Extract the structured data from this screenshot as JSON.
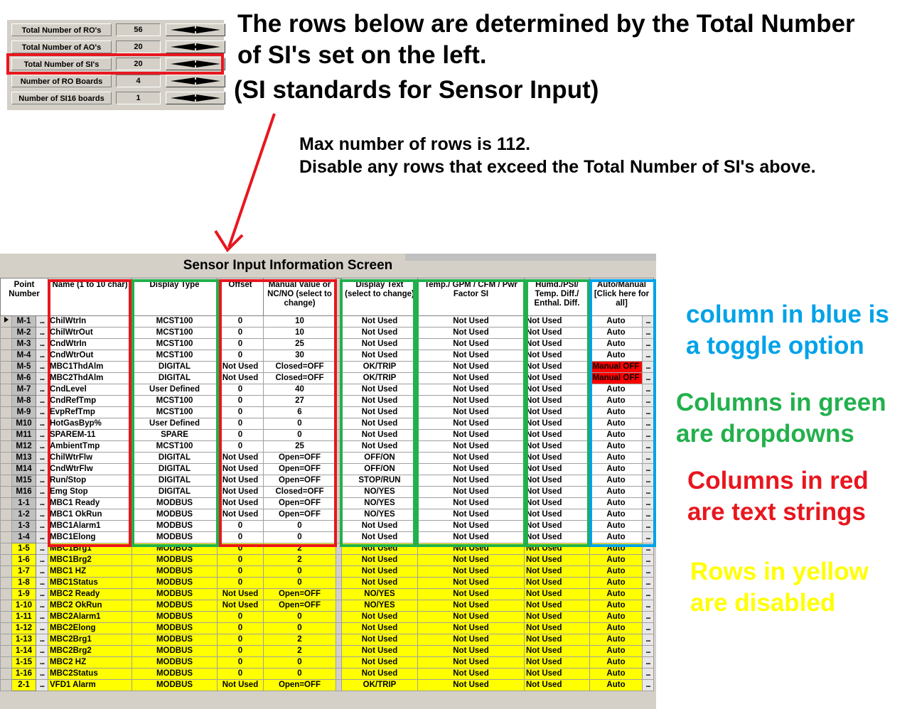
{
  "settings": [
    {
      "label": "Total Number of RO's",
      "value": "56"
    },
    {
      "label": "Total Number of AO's",
      "value": "20"
    },
    {
      "label": "Total Number of SI's",
      "value": "20"
    },
    {
      "label": "Number of RO Boards",
      "value": "4"
    },
    {
      "label": "Number of SI16 boards",
      "value": "1"
    }
  ],
  "annotations": {
    "title_line1": "The rows below are determined by the Total Number",
    "title_line2": "of SI's set on the left.",
    "si_meaning": "(SI standards for Sensor Input)",
    "max_rows": "Max number of rows is 112.",
    "disable_rows": "Disable any rows that exceed the Total Number of SI's above.",
    "blue_line1": "column in blue is",
    "blue_line2": "a toggle option",
    "green_line1": "Columns in green",
    "green_line2": "are dropdowns",
    "red_line1": "Columns in red",
    "red_line2": "are text strings",
    "yellow_line1": "Rows in yellow",
    "yellow_line2": "are disabled"
  },
  "colors": {
    "red": "#e8161e",
    "green": "#22b04c",
    "blue": "#00a2e8",
    "yellow": "#ffff00"
  },
  "screen": {
    "title": "Sensor Input Information Screen",
    "columns": [
      "Point Number",
      "Name  (1 to 10 char)",
      "Display Type",
      "Offset",
      "Manual Value or NC/NO (select to change)",
      "Display Text (select to change)",
      "Temp./ GPM / CFM / Pwr Factor SI",
      "Humd./PSI/ Temp. Diff./ Enthal. Diff.",
      "Auto/Manual [Click here for all]"
    ],
    "button_label": "...",
    "current_row_icon": "current-row-arrow-icon",
    "rows": [
      {
        "pt": "M-1",
        "name": "ChilWtrIn",
        "type": "MCST100",
        "offset": "0",
        "manual": "10",
        "text": "Not Used",
        "temp": "Not Used",
        "humd": "Not Used",
        "mode": "Auto",
        "disabled": false
      },
      {
        "pt": "M-2",
        "name": "ChilWtrOut",
        "type": "MCST100",
        "offset": "0",
        "manual": "10",
        "text": "Not Used",
        "temp": "Not Used",
        "humd": "Not Used",
        "mode": "Auto",
        "disabled": false
      },
      {
        "pt": "M-3",
        "name": "CndWtrIn",
        "type": "MCST100",
        "offset": "0",
        "manual": "25",
        "text": "Not Used",
        "temp": "Not Used",
        "humd": "Not Used",
        "mode": "Auto",
        "disabled": false
      },
      {
        "pt": "M-4",
        "name": "CndWtrOut",
        "type": "MCST100",
        "offset": "0",
        "manual": "30",
        "text": "Not Used",
        "temp": "Not Used",
        "humd": "Not Used",
        "mode": "Auto",
        "disabled": false
      },
      {
        "pt": "M-5",
        "name": "MBC1ThdAlm",
        "type": "DIGITAL",
        "offset": "Not Used",
        "manual": "Closed=OFF",
        "text": "OK/TRIP",
        "temp": "Not Used",
        "humd": "Not Used",
        "mode": "Manual OFF",
        "disabled": false
      },
      {
        "pt": "M-6",
        "name": "MBC2ThdAlm",
        "type": "DIGITAL",
        "offset": "Not Used",
        "manual": "Closed=OFF",
        "text": "OK/TRIP",
        "temp": "Not Used",
        "humd": "Not Used",
        "mode": "Manual OFF",
        "disabled": false
      },
      {
        "pt": "M-7",
        "name": "CndLevel",
        "type": "User Defined",
        "offset": "0",
        "manual": "40",
        "text": "Not Used",
        "temp": "Not Used",
        "humd": "Not Used",
        "mode": "Auto",
        "disabled": false
      },
      {
        "pt": "M-8",
        "name": "CndRefTmp",
        "type": "MCST100",
        "offset": "0",
        "manual": "27",
        "text": "Not Used",
        "temp": "Not Used",
        "humd": "Not Used",
        "mode": "Auto",
        "disabled": false
      },
      {
        "pt": "M-9",
        "name": "EvpRefTmp",
        "type": "MCST100",
        "offset": "0",
        "manual": "6",
        "text": "Not Used",
        "temp": "Not Used",
        "humd": "Not Used",
        "mode": "Auto",
        "disabled": false
      },
      {
        "pt": "M10",
        "name": "HotGasByp%",
        "type": "User Defined",
        "offset": "0",
        "manual": "0",
        "text": "Not Used",
        "temp": "Not Used",
        "humd": "Not Used",
        "mode": "Auto",
        "disabled": false
      },
      {
        "pt": "M11",
        "name": "SPAREM-11",
        "type": "SPARE",
        "offset": "0",
        "manual": "0",
        "text": "Not Used",
        "temp": "Not Used",
        "humd": "Not Used",
        "mode": "Auto",
        "disabled": false
      },
      {
        "pt": "M12",
        "name": "AmbientTmp",
        "type": "MCST100",
        "offset": "0",
        "manual": "25",
        "text": "Not Used",
        "temp": "Not Used",
        "humd": "Not Used",
        "mode": "Auto",
        "disabled": false
      },
      {
        "pt": "M13",
        "name": "ChilWtrFlw",
        "type": "DIGITAL",
        "offset": "Not Used",
        "manual": "Open=OFF",
        "text": "OFF/ON",
        "temp": "Not Used",
        "humd": "Not Used",
        "mode": "Auto",
        "disabled": false
      },
      {
        "pt": "M14",
        "name": "CndWtrFlw",
        "type": "DIGITAL",
        "offset": "Not Used",
        "manual": "Open=OFF",
        "text": "OFF/ON",
        "temp": "Not Used",
        "humd": "Not Used",
        "mode": "Auto",
        "disabled": false
      },
      {
        "pt": "M15",
        "name": "Run/Stop",
        "type": "DIGITAL",
        "offset": "Not Used",
        "manual": "Open=OFF",
        "text": "STOP/RUN",
        "temp": "Not Used",
        "humd": "Not Used",
        "mode": "Auto",
        "disabled": false
      },
      {
        "pt": "M16",
        "name": "Emg Stop",
        "type": "DIGITAL",
        "offset": "Not Used",
        "manual": "Closed=OFF",
        "text": "NO/YES",
        "temp": "Not Used",
        "humd": "Not Used",
        "mode": "Auto",
        "disabled": false
      },
      {
        "pt": "1-1",
        "name": "MBC1 Ready",
        "type": "MODBUS",
        "offset": "Not Used",
        "manual": "Open=OFF",
        "text": "NO/YES",
        "temp": "Not Used",
        "humd": "Not Used",
        "mode": "Auto",
        "disabled": false
      },
      {
        "pt": "1-2",
        "name": "MBC1 OkRun",
        "type": "MODBUS",
        "offset": "Not Used",
        "manual": "Open=OFF",
        "text": "NO/YES",
        "temp": "Not Used",
        "humd": "Not Used",
        "mode": "Auto",
        "disabled": false
      },
      {
        "pt": "1-3",
        "name": "MBC1Alarm1",
        "type": "MODBUS",
        "offset": "0",
        "manual": "0",
        "text": "Not Used",
        "temp": "Not Used",
        "humd": "Not Used",
        "mode": "Auto",
        "disabled": false
      },
      {
        "pt": "1-4",
        "name": "MBC1Elong",
        "type": "MODBUS",
        "offset": "0",
        "manual": "0",
        "text": "Not Used",
        "temp": "Not Used",
        "humd": "Not Used",
        "mode": "Auto",
        "disabled": false
      },
      {
        "pt": "1-5",
        "name": "MBC1Brg1",
        "type": "MODBUS",
        "offset": "0",
        "manual": "2",
        "text": "Not Used",
        "temp": "Not Used",
        "humd": "Not Used",
        "mode": "Auto",
        "disabled": true
      },
      {
        "pt": "1-6",
        "name": "MBC1Brg2",
        "type": "MODBUS",
        "offset": "0",
        "manual": "2",
        "text": "Not Used",
        "temp": "Not Used",
        "humd": "Not Used",
        "mode": "Auto",
        "disabled": true
      },
      {
        "pt": "1-7",
        "name": "MBC1 HZ",
        "type": "MODBUS",
        "offset": "0",
        "manual": "0",
        "text": "Not Used",
        "temp": "Not Used",
        "humd": "Not Used",
        "mode": "Auto",
        "disabled": true
      },
      {
        "pt": "1-8",
        "name": "MBC1Status",
        "type": "MODBUS",
        "offset": "0",
        "manual": "0",
        "text": "Not Used",
        "temp": "Not Used",
        "humd": "Not Used",
        "mode": "Auto",
        "disabled": true
      },
      {
        "pt": "1-9",
        "name": "MBC2 Ready",
        "type": "MODBUS",
        "offset": "Not Used",
        "manual": "Open=OFF",
        "text": "NO/YES",
        "temp": "Not Used",
        "humd": "Not Used",
        "mode": "Auto",
        "disabled": true
      },
      {
        "pt": "1-10",
        "name": "MBC2 OkRun",
        "type": "MODBUS",
        "offset": "Not Used",
        "manual": "Open=OFF",
        "text": "NO/YES",
        "temp": "Not Used",
        "humd": "Not Used",
        "mode": "Auto",
        "disabled": true
      },
      {
        "pt": "1-11",
        "name": "MBC2Alarm1",
        "type": "MODBUS",
        "offset": "0",
        "manual": "0",
        "text": "Not Used",
        "temp": "Not Used",
        "humd": "Not Used",
        "mode": "Auto",
        "disabled": true
      },
      {
        "pt": "1-12",
        "name": "MBC2Elong",
        "type": "MODBUS",
        "offset": "0",
        "manual": "0",
        "text": "Not Used",
        "temp": "Not Used",
        "humd": "Not Used",
        "mode": "Auto",
        "disabled": true
      },
      {
        "pt": "1-13",
        "name": "MBC2Brg1",
        "type": "MODBUS",
        "offset": "0",
        "manual": "2",
        "text": "Not Used",
        "temp": "Not Used",
        "humd": "Not Used",
        "mode": "Auto",
        "disabled": true
      },
      {
        "pt": "1-14",
        "name": "MBC2Brg2",
        "type": "MODBUS",
        "offset": "0",
        "manual": "2",
        "text": "Not Used",
        "temp": "Not Used",
        "humd": "Not Used",
        "mode": "Auto",
        "disabled": true
      },
      {
        "pt": "1-15",
        "name": "MBC2 HZ",
        "type": "MODBUS",
        "offset": "0",
        "manual": "0",
        "text": "Not Used",
        "temp": "Not Used",
        "humd": "Not Used",
        "mode": "Auto",
        "disabled": true
      },
      {
        "pt": "1-16",
        "name": "MBC2Status",
        "type": "MODBUS",
        "offset": "0",
        "manual": "0",
        "text": "Not Used",
        "temp": "Not Used",
        "humd": "Not Used",
        "mode": "Auto",
        "disabled": true
      },
      {
        "pt": "2-1",
        "name": "VFD1 Alarm",
        "type": "MODBUS",
        "offset": "Not Used",
        "manual": "Open=OFF",
        "text": "OK/TRIP",
        "temp": "Not Used",
        "humd": "Not Used",
        "mode": "Auto",
        "disabled": true
      }
    ]
  }
}
